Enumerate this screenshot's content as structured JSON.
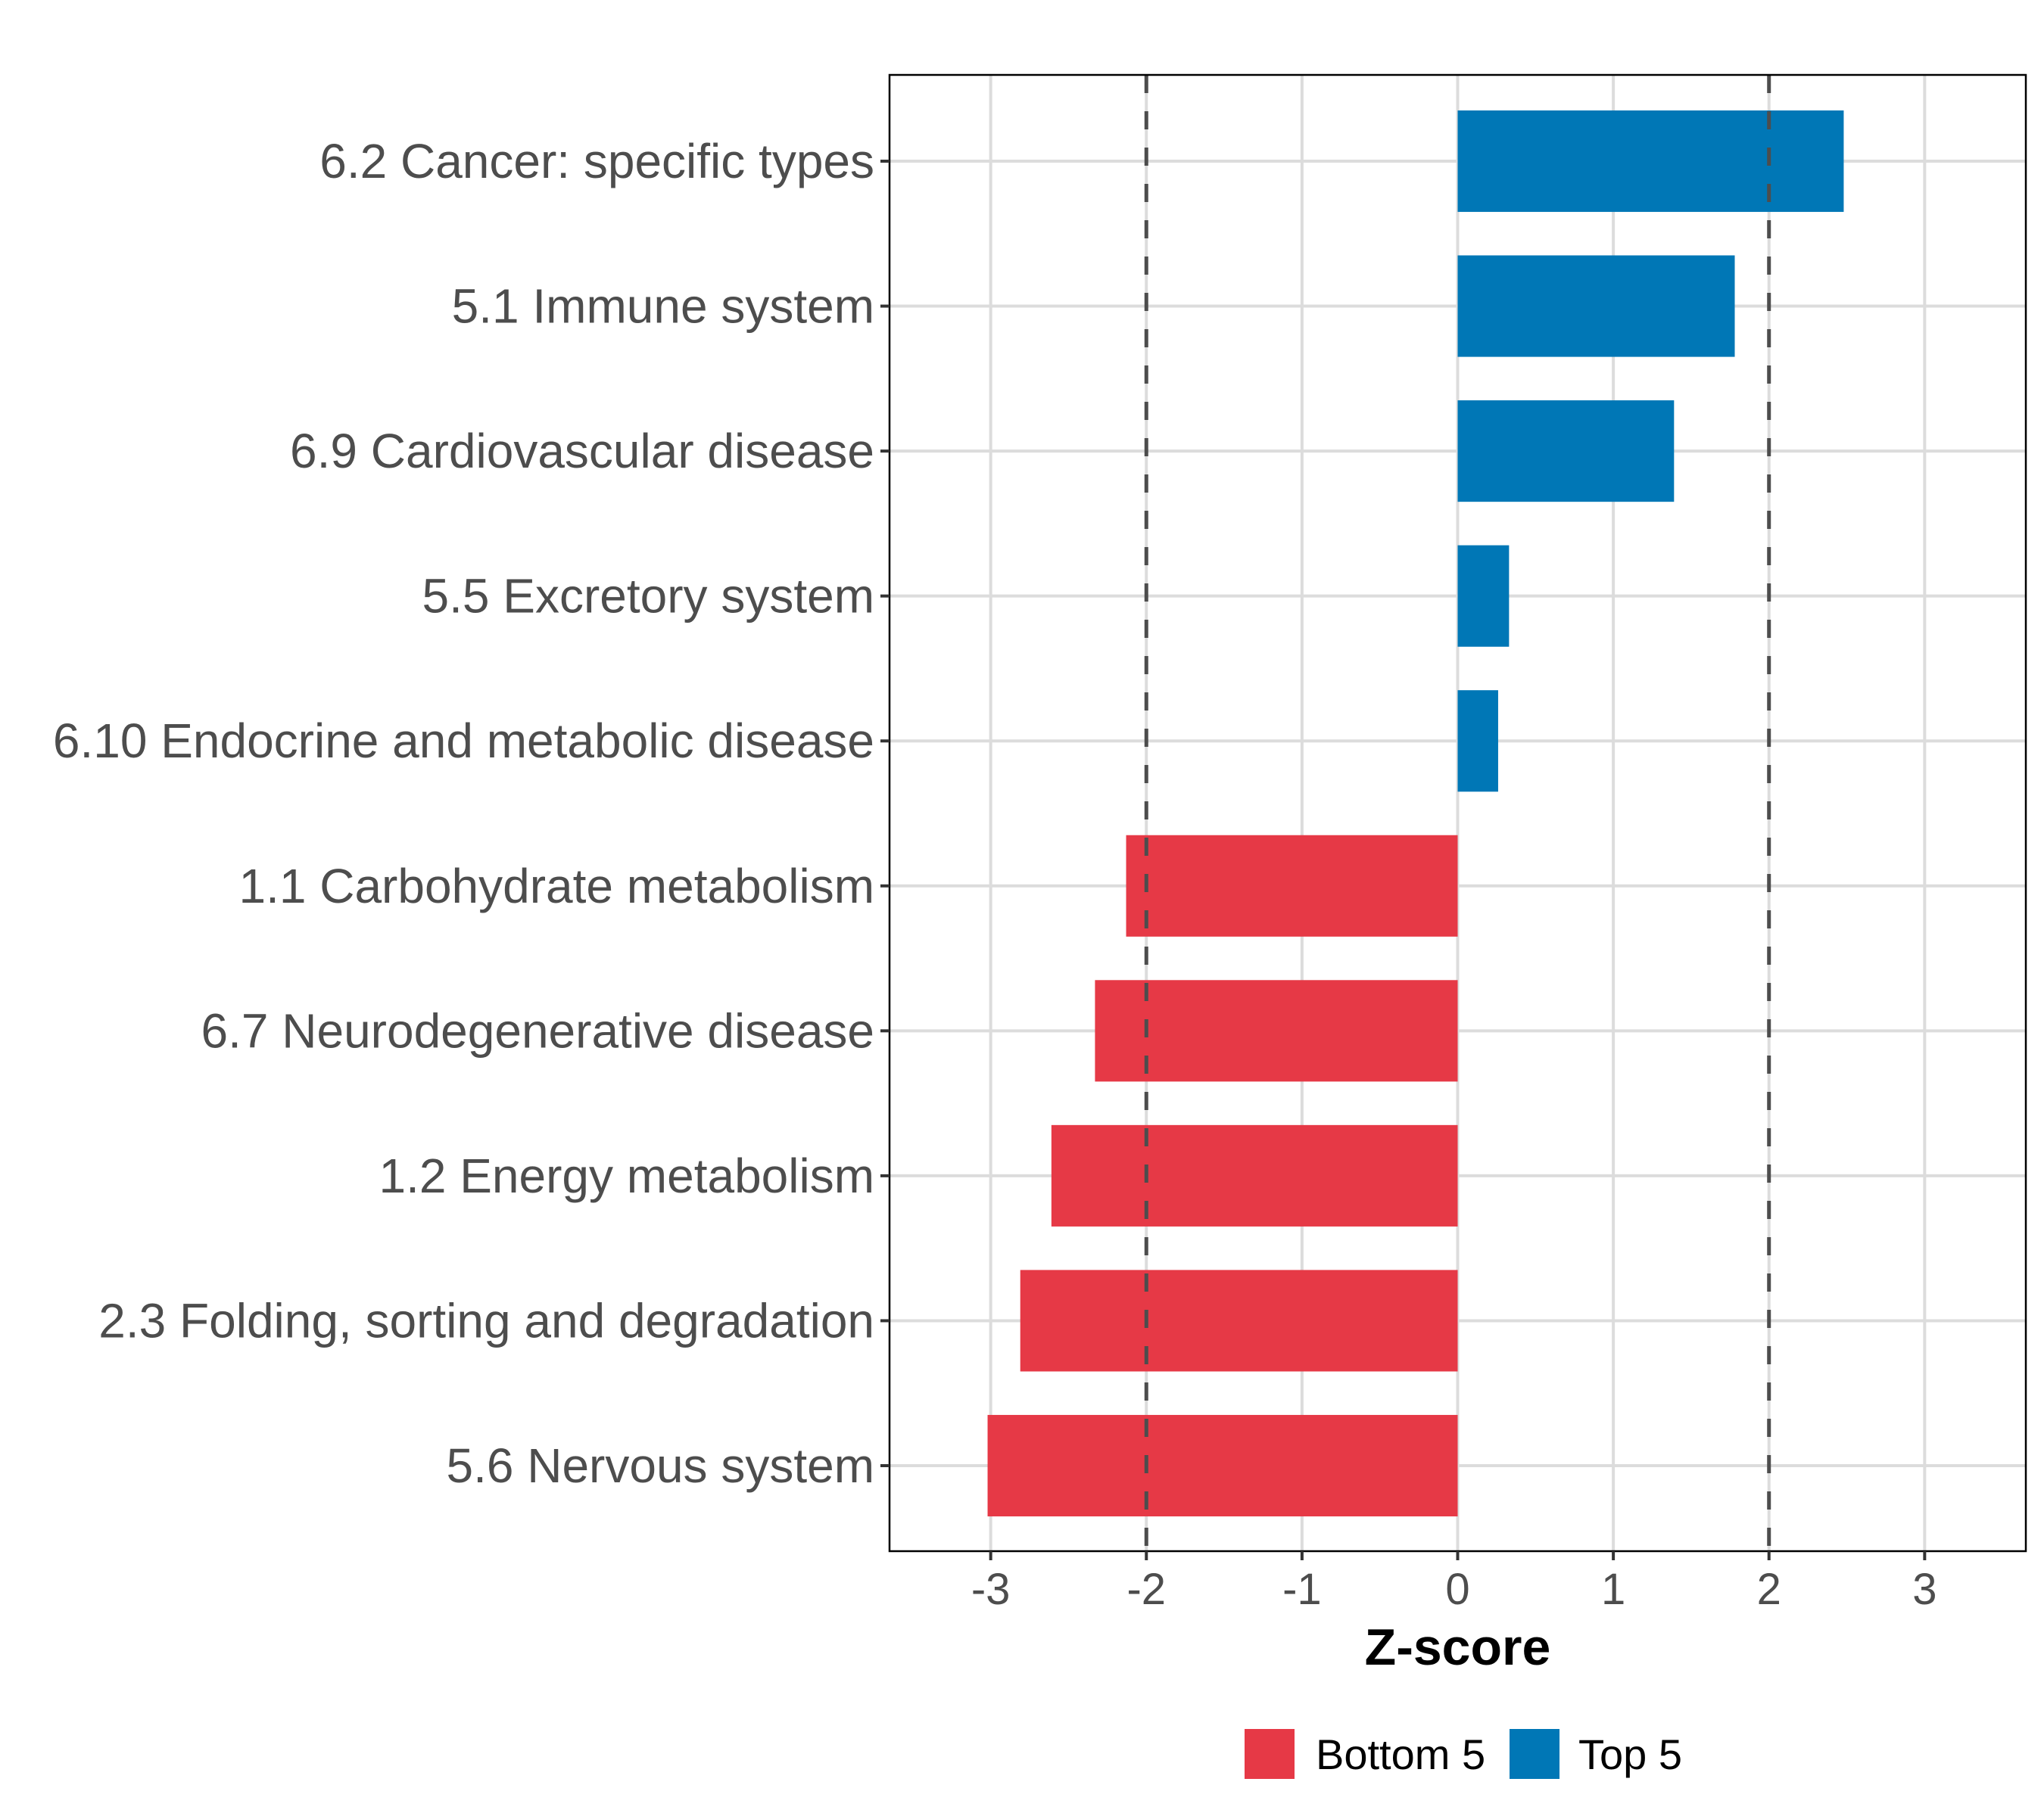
{
  "chart_data": {
    "type": "bar",
    "orientation": "horizontal",
    "title": "",
    "xlabel": "Z-score",
    "ylabel": "",
    "xlim": [
      -3.65,
      3.65
    ],
    "xticks": [
      -3,
      -2,
      -1,
      0,
      1,
      2,
      3
    ],
    "xtick_labels": [
      "-3",
      "-2",
      "-1",
      "0",
      "1",
      "2",
      "3"
    ],
    "grid": true,
    "reference_lines": [
      {
        "x": -2,
        "style": "dashed",
        "color": "#4d4d4d"
      },
      {
        "x": 2,
        "style": "dashed",
        "color": "#4d4d4d"
      }
    ],
    "categories": [
      "6.2 Cancer: specific types",
      "5.1 Immune system",
      "6.9 Cardiovascular disease",
      "5.5 Excretory system",
      "6.10 Endocrine and metabolic disease",
      "1.1 Carbohydrate metabolism",
      "6.7 Neurodegenerative disease",
      "1.2 Energy metabolism",
      "2.3 Folding, sorting and degradation",
      "5.6 Nervous system"
    ],
    "values": [
      2.48,
      1.78,
      1.39,
      0.33,
      0.26,
      -2.13,
      -2.33,
      -2.61,
      -2.81,
      -3.02
    ],
    "groups": [
      "Top 5",
      "Top 5",
      "Top 5",
      "Top 5",
      "Top 5",
      "Bottom 5",
      "Bottom 5",
      "Bottom 5",
      "Bottom 5",
      "Bottom 5"
    ],
    "legend": {
      "position": "bottom",
      "entries": [
        {
          "label": "Bottom 5",
          "color": "#E63946"
        },
        {
          "label": "Top 5",
          "color": "#0077B6"
        }
      ]
    },
    "colors": {
      "Top 5": "#0077B6",
      "Bottom 5": "#E63946",
      "grid": "#dcdcdc",
      "panel_border": "#000000",
      "text": "#4d4d4d"
    }
  }
}
